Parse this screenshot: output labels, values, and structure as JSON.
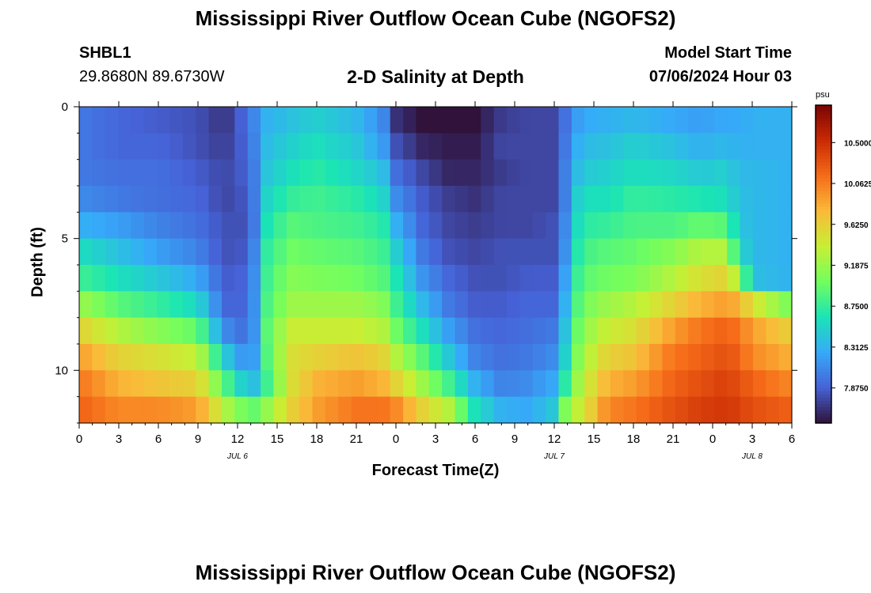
{
  "page": {
    "title": "Mississippi River Outflow Ocean Cube (NGOFS2)",
    "title_repeat": "Mississippi River Outflow Ocean Cube (NGOFS2)",
    "station_id": "SHBL1",
    "station_coords": "29.8680N  89.6730W",
    "subtitle": "2-D Salinity at Depth",
    "model_start_label": "Model Start Time",
    "model_start_value": "07/06/2024 Hour 03"
  },
  "chart_data": {
    "type": "heatmap",
    "title": "2-D Salinity at Depth",
    "xlabel": "Forecast Time(Z)",
    "ylabel": "Depth (ft)",
    "x_ticks": [
      "0",
      "3",
      "6",
      "9",
      "12",
      "15",
      "18",
      "21",
      "0",
      "3",
      "6",
      "9",
      "12",
      "15",
      "18",
      "21",
      "0",
      "3",
      "6"
    ],
    "x_tick_hours": [
      0,
      3,
      6,
      9,
      12,
      15,
      18,
      21,
      24,
      27,
      30,
      33,
      36,
      39,
      42,
      45,
      48,
      51,
      54
    ],
    "xlim": [
      0,
      54
    ],
    "day_labels": [
      {
        "text": "JUL 6",
        "hour": 12
      },
      {
        "text": "JUL 7",
        "hour": 36
      },
      {
        "text": "JUL 8",
        "hour": 51
      }
    ],
    "y_ticks": [
      "0",
      "5",
      "10"
    ],
    "y_tick_values": [
      0,
      5,
      10
    ],
    "ylim": [
      0,
      12
    ],
    "y_inverted": true,
    "colorbar": {
      "unit": "psu",
      "range": [
        7.5,
        10.9
      ],
      "tick_labels": [
        "10.5000",
        "10.0625",
        "9.6250",
        "9.1875",
        "8.7500",
        "8.3125",
        "7.8750"
      ],
      "tick_values": [
        10.5,
        10.0625,
        9.625,
        9.1875,
        8.75,
        8.3125,
        7.875
      ],
      "colormap": [
        "#30123b",
        "#4662d7",
        "#36aaf9",
        "#1ae4b6",
        "#72fe5e",
        "#c8ef34",
        "#faba39",
        "#f66b19",
        "#ca2a04",
        "#7a0403"
      ]
    },
    "depth_rows": 12,
    "time_cols": 55,
    "column_profiles": [
      {
        "hour": 0,
        "values": [
          8.0,
          8.0,
          8.0,
          8.1,
          8.3,
          8.6,
          8.8,
          9.2,
          9.6,
          9.9,
          10.1,
          10.2
        ]
      },
      {
        "hour": 3,
        "values": [
          7.9,
          7.9,
          7.95,
          8.0,
          8.2,
          8.4,
          8.6,
          8.9,
          9.3,
          9.6,
          9.8,
          10.0
        ]
      },
      {
        "hour": 6,
        "values": [
          7.85,
          7.9,
          7.95,
          7.95,
          8.05,
          8.2,
          8.45,
          8.75,
          9.1,
          9.5,
          9.7,
          10.0
        ]
      },
      {
        "hour": 9,
        "values": [
          7.8,
          7.8,
          7.85,
          7.9,
          7.95,
          8.05,
          8.25,
          8.55,
          8.95,
          9.35,
          9.6,
          9.9
        ]
      },
      {
        "hour": 11,
        "values": [
          7.65,
          7.7,
          7.75,
          7.75,
          7.8,
          7.8,
          7.85,
          7.9,
          8.1,
          8.5,
          8.9,
          9.3
        ]
      },
      {
        "hour": 13,
        "values": [
          8.0,
          7.95,
          7.9,
          7.85,
          7.8,
          7.85,
          7.9,
          7.9,
          7.9,
          8.0,
          8.3,
          8.9
        ]
      },
      {
        "hour": 14,
        "values": [
          8.3,
          8.35,
          8.4,
          8.5,
          8.6,
          8.7,
          8.75,
          8.8,
          8.85,
          8.8,
          8.7,
          9.1
        ]
      },
      {
        "hour": 16,
        "values": [
          8.4,
          8.5,
          8.6,
          8.75,
          8.9,
          9.0,
          9.1,
          9.2,
          9.4,
          9.5,
          9.5,
          9.6
        ]
      },
      {
        "hour": 18,
        "values": [
          8.5,
          8.6,
          8.7,
          8.8,
          8.85,
          8.95,
          9.05,
          9.2,
          9.4,
          9.6,
          9.8,
          9.9
        ]
      },
      {
        "hour": 21,
        "values": [
          8.35,
          8.45,
          8.55,
          8.7,
          8.8,
          8.9,
          9.0,
          9.2,
          9.4,
          9.7,
          9.9,
          10.1
        ]
      },
      {
        "hour": 23,
        "values": [
          8.1,
          8.2,
          8.4,
          8.55,
          8.7,
          8.8,
          8.9,
          9.1,
          9.3,
          9.6,
          9.8,
          10.1
        ]
      },
      {
        "hour": 24,
        "values": [
          7.65,
          7.8,
          7.95,
          8.1,
          8.3,
          8.5,
          8.65,
          8.8,
          9.0,
          9.3,
          9.6,
          10.0
        ]
      },
      {
        "hour": 26,
        "values": [
          7.5,
          7.6,
          7.75,
          7.85,
          7.9,
          8.0,
          8.15,
          8.35,
          8.6,
          8.9,
          9.2,
          9.6
        ]
      },
      {
        "hour": 28,
        "values": [
          7.45,
          7.55,
          7.6,
          7.7,
          7.75,
          7.8,
          7.9,
          8.0,
          8.2,
          8.45,
          8.8,
          9.3
        ]
      },
      {
        "hour": 30,
        "values": [
          7.5,
          7.55,
          7.6,
          7.65,
          7.7,
          7.75,
          7.8,
          7.85,
          7.95,
          8.05,
          8.3,
          8.6
        ]
      },
      {
        "hour": 32,
        "values": [
          7.7,
          7.75,
          7.7,
          7.75,
          7.75,
          7.8,
          7.8,
          7.85,
          7.9,
          7.95,
          8.05,
          8.3
        ]
      },
      {
        "hour": 34,
        "values": [
          7.75,
          7.75,
          7.75,
          7.75,
          7.75,
          7.8,
          7.85,
          7.9,
          7.95,
          8.0,
          8.1,
          8.25
        ]
      },
      {
        "hour": 36,
        "values": [
          7.75,
          7.75,
          7.75,
          7.75,
          7.8,
          7.8,
          7.85,
          7.9,
          8.0,
          8.1,
          8.25,
          8.45
        ]
      },
      {
        "hour": 37,
        "values": [
          8.0,
          8.05,
          8.1,
          8.1,
          8.15,
          8.2,
          8.3,
          8.4,
          8.5,
          8.6,
          8.8,
          9.2
        ]
      },
      {
        "hour": 38,
        "values": [
          8.25,
          8.35,
          8.45,
          8.6,
          8.7,
          8.8,
          8.9,
          9.0,
          9.1,
          9.2,
          9.3,
          9.4
        ]
      },
      {
        "hour": 40,
        "values": [
          8.3,
          8.4,
          8.5,
          8.6,
          8.75,
          8.9,
          9.0,
          9.2,
          9.4,
          9.6,
          9.8,
          10.0
        ]
      },
      {
        "hour": 42,
        "values": [
          8.35,
          8.5,
          8.6,
          8.75,
          8.85,
          8.95,
          9.05,
          9.3,
          9.5,
          9.7,
          9.9,
          10.1
        ]
      },
      {
        "hour": 45,
        "values": [
          8.25,
          8.4,
          8.55,
          8.7,
          8.85,
          9.1,
          9.3,
          9.6,
          9.9,
          10.1,
          10.2,
          10.3
        ]
      },
      {
        "hour": 47,
        "values": [
          8.2,
          8.3,
          8.45,
          8.65,
          8.95,
          9.3,
          9.5,
          9.8,
          10.1,
          10.2,
          10.3,
          10.4
        ]
      },
      {
        "hour": 49,
        "values": [
          8.25,
          8.35,
          8.5,
          8.6,
          8.9,
          9.3,
          9.6,
          9.9,
          10.2,
          10.3,
          10.4,
          10.45
        ]
      },
      {
        "hour": 50,
        "values": [
          8.25,
          8.3,
          8.35,
          8.4,
          8.45,
          8.6,
          9.2,
          9.8,
          10.1,
          10.2,
          10.3,
          10.4
        ]
      },
      {
        "hour": 51,
        "values": [
          8.3,
          8.3,
          8.35,
          8.35,
          8.35,
          8.35,
          8.4,
          9.5,
          9.9,
          10.0,
          10.2,
          10.3
        ]
      },
      {
        "hour": 54,
        "values": [
          8.3,
          8.3,
          8.3,
          8.3,
          8.3,
          8.3,
          8.3,
          9.0,
          9.6,
          9.8,
          10.0,
          10.2
        ]
      }
    ]
  }
}
